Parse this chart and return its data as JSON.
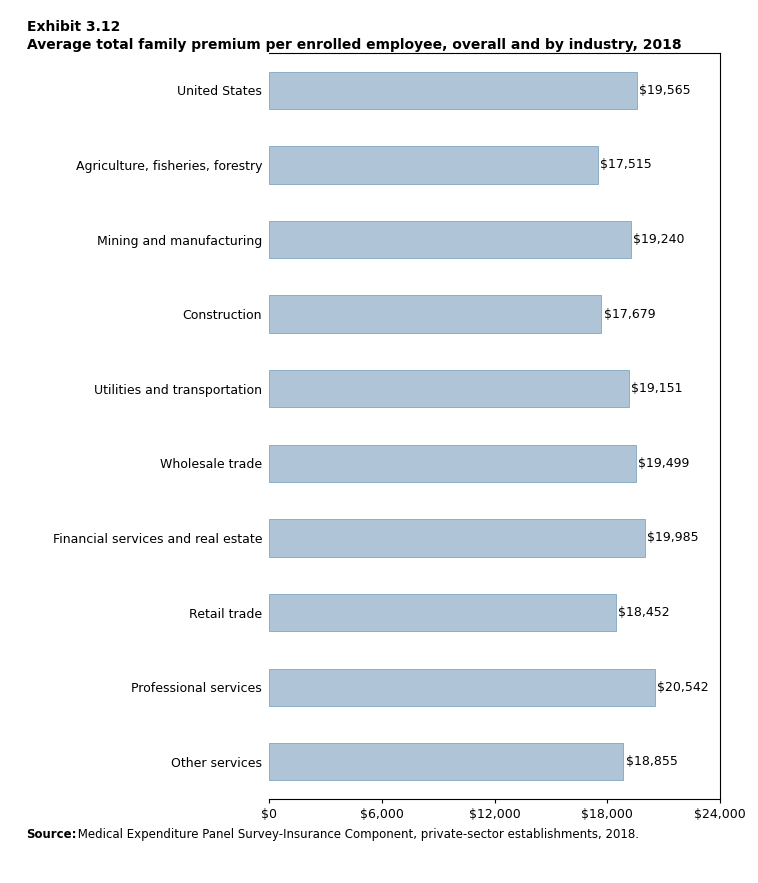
{
  "title_line1": "Exhibit 3.12",
  "title_line2": "Average total family premium per enrolled employee, overall and by industry, 2018",
  "categories": [
    "United States",
    "Agriculture, fisheries, forestry",
    "Mining and manufacturing",
    "Construction",
    "Utilities and transportation",
    "Wholesale trade",
    "Financial services and real estate",
    "Retail trade",
    "Professional services",
    "Other services"
  ],
  "values": [
    19565,
    17515,
    19240,
    17679,
    19151,
    19499,
    19985,
    18452,
    20542,
    18855
  ],
  "labels": [
    "$19,565",
    "$17,515",
    "$19,240",
    "$17,679",
    "$19,151",
    "$19,499",
    "$19,985",
    "$18,452",
    "$20,542",
    "$18,855"
  ],
  "bar_color": "#b0c4d8",
  "bar_edge_color": "#8aafc8",
  "xlim": [
    0,
    24000
  ],
  "xticks": [
    0,
    6000,
    12000,
    18000,
    24000
  ],
  "xtick_labels": [
    "$0",
    "$6,000",
    "$12,000",
    "$18,000",
    "$24,000"
  ],
  "source_bold": "Source:",
  "source_text": " Medical Expenditure Panel Survey-Insurance Component, private-sector establishments, 2018.",
  "background_color": "#ffffff",
  "plot_background": "#ffffff",
  "title1_fontsize": 10,
  "title2_fontsize": 10,
  "bar_label_fontsize": 9,
  "tick_label_fontsize": 9,
  "source_fontsize": 8.5
}
